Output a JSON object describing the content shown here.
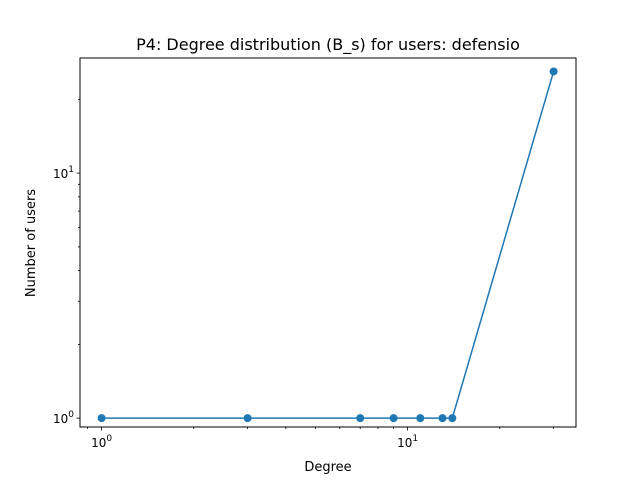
{
  "chart_data": {
    "type": "line",
    "title": "P4: Degree distribution (B_s) for users: defensio",
    "xlabel": "Degree",
    "ylabel": "Number of users",
    "xscale": "log",
    "yscale": "log",
    "xlim": [
      0.85,
      35.5
    ],
    "ylim": [
      0.92,
      29.5
    ],
    "grid": false,
    "legend": "none",
    "x_major_ticks": [
      {
        "value": 1,
        "base": "10",
        "exp": "0"
      },
      {
        "value": 10,
        "base": "10",
        "exp": "1"
      }
    ],
    "y_major_ticks": [
      {
        "value": 1,
        "base": "10",
        "exp": "0"
      },
      {
        "value": 10,
        "base": "10",
        "exp": "1"
      }
    ],
    "x_minor_ticks": [
      0.9,
      2,
      3,
      4,
      5,
      6,
      7,
      8,
      9,
      20,
      30
    ],
    "y_minor_ticks": [
      2,
      3,
      4,
      5,
      6,
      7,
      8,
      9,
      20
    ],
    "series": [
      {
        "color": "#1f77b4",
        "marker": "circle",
        "x": [
          1,
          3,
          7,
          9,
          11,
          13,
          14,
          30
        ],
        "y": [
          1,
          1,
          1,
          1,
          1,
          1,
          1,
          26
        ]
      }
    ]
  }
}
